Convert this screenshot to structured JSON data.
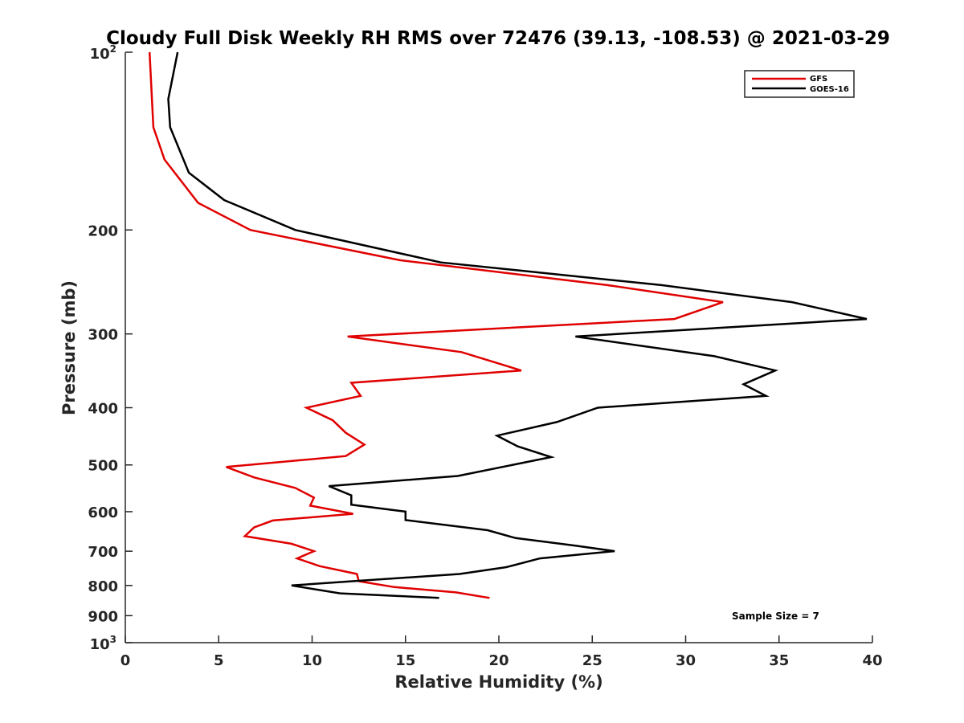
{
  "chart_data": {
    "type": "line",
    "title": "Cloudy Full Disk Weekly RH RMS over 72476 (39.13, -108.53) @ 2021-03-29",
    "xlabel": "Relative Humidity (%)",
    "ylabel": "Pressure (mb)",
    "xlim": [
      0,
      40
    ],
    "ylim": [
      100,
      1000
    ],
    "y_scale": "log",
    "y_reversed": true,
    "grid": false,
    "legend_position": "top-right",
    "x_ticks": [
      0,
      5,
      10,
      15,
      20,
      25,
      30,
      35,
      40
    ],
    "y_ticks": [
      {
        "value": 100,
        "label": "10",
        "sup": "2"
      },
      {
        "value": 200,
        "label": "200"
      },
      {
        "value": 300,
        "label": "300"
      },
      {
        "value": 400,
        "label": "400"
      },
      {
        "value": 500,
        "label": "500"
      },
      {
        "value": 600,
        "label": "600"
      },
      {
        "value": 700,
        "label": "700"
      },
      {
        "value": 800,
        "label": "800"
      },
      {
        "value": 900,
        "label": "900"
      },
      {
        "value": 1000,
        "label": "10",
        "sup": "3"
      }
    ],
    "annotation": "Sample Size = 7",
    "series": [
      {
        "name": "GFS",
        "color": "#e00000",
        "points": [
          [
            1.3,
            100
          ],
          [
            1.5,
            134
          ],
          [
            2.1,
            152
          ],
          [
            3.9,
            180
          ],
          [
            6.7,
            200
          ],
          [
            14.7,
            225
          ],
          [
            25.8,
            248
          ],
          [
            32.0,
            265
          ],
          [
            29.4,
            283
          ],
          [
            11.9,
            303
          ],
          [
            18.0,
            322
          ],
          [
            21.2,
            346
          ],
          [
            12.1,
            363
          ],
          [
            12.6,
            382
          ],
          [
            9.7,
            400
          ],
          [
            11.1,
            420
          ],
          [
            11.8,
            441
          ],
          [
            12.8,
            462
          ],
          [
            11.8,
            483
          ],
          [
            5.4,
            504
          ],
          [
            6.9,
            525
          ],
          [
            9.1,
            547
          ],
          [
            10.1,
            568
          ],
          [
            9.9,
            586
          ],
          [
            12.2,
            605
          ],
          [
            7.9,
            621
          ],
          [
            6.9,
            638
          ],
          [
            6.4,
            660
          ],
          [
            8.9,
            680
          ],
          [
            10.1,
            700
          ],
          [
            9.2,
            720
          ],
          [
            10.4,
            742
          ],
          [
            12.4,
            765
          ],
          [
            12.5,
            787
          ],
          [
            14.4,
            805
          ],
          [
            17.7,
            822
          ],
          [
            19.5,
            840
          ]
        ]
      },
      {
        "name": "GOES-16",
        "color": "#000000",
        "points": [
          [
            2.8,
            100
          ],
          [
            2.3,
            120
          ],
          [
            2.4,
            134
          ],
          [
            3.4,
            160
          ],
          [
            5.3,
            178
          ],
          [
            9.1,
            200
          ],
          [
            16.9,
            227
          ],
          [
            28.7,
            248
          ],
          [
            35.7,
            265
          ],
          [
            39.7,
            283
          ],
          [
            24.1,
            303
          ],
          [
            31.5,
            327
          ],
          [
            34.8,
            346
          ],
          [
            33.1,
            365
          ],
          [
            34.3,
            382
          ],
          [
            25.3,
            400
          ],
          [
            23.1,
            423
          ],
          [
            19.9,
            446
          ],
          [
            21.0,
            465
          ],
          [
            22.8,
            485
          ],
          [
            17.8,
            522
          ],
          [
            10.9,
            543
          ],
          [
            12.1,
            563
          ],
          [
            12.1,
            584
          ],
          [
            15.0,
            600
          ],
          [
            15.0,
            620
          ],
          [
            19.4,
            645
          ],
          [
            20.9,
            665
          ],
          [
            24.1,
            685
          ],
          [
            26.2,
            700
          ],
          [
            22.2,
            720
          ],
          [
            20.4,
            745
          ],
          [
            17.9,
            765
          ],
          [
            12.4,
            786
          ],
          [
            8.9,
            800
          ],
          [
            11.5,
            825
          ],
          [
            16.8,
            840
          ]
        ]
      }
    ]
  }
}
